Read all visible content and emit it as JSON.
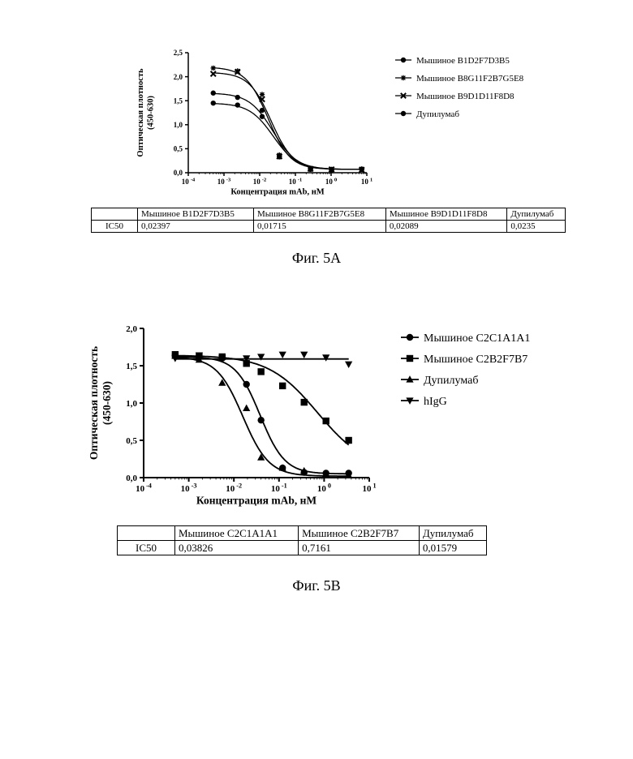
{
  "chart_data": [
    {
      "id": "5A",
      "type": "scatter",
      "title": "",
      "xlabel": "Концентрация mAb, нМ",
      "ylabel": "Оптическая плотность (450-630)",
      "xscale": "log",
      "xlim": [
        0.0001,
        10
      ],
      "ylim": [
        0,
        2.5
      ],
      "x_tick_labels": [
        {
          "base": "10",
          "exp": "-4"
        },
        {
          "base": "10",
          "exp": "-3"
        },
        {
          "base": "10",
          "exp": "-2"
        },
        {
          "base": "10",
          "exp": "-1"
        },
        {
          "base": "10",
          "exp": "0"
        },
        {
          "base": "10",
          "exp": "1"
        }
      ],
      "y_ticks": [
        0,
        0.5,
        1,
        1.5,
        2,
        2.5
      ],
      "y_tick_labels": [
        "0,0",
        "0,5",
        "1,0",
        "1,5",
        "2,0",
        "2,5"
      ],
      "legend_position": "right",
      "grid": false,
      "series": [
        {
          "name": "Мышиное B1D2F7D3B5",
          "marker": "circle",
          "top": 1.45,
          "bottom": 0.07,
          "ic50": 0.02397,
          "hill": 1.3,
          "x": [
            0.0005,
            0.0024,
            0.0117,
            0.0356,
            0.265,
            1.03,
            7.2
          ],
          "y": [
            1.45,
            1.41,
            1.17,
            0.33,
            0.07,
            0.06,
            0.07
          ]
        },
        {
          "name": "Мышиное B8G11F2B7G5E8",
          "marker": "star",
          "top": 2.2,
          "bottom": 0.07,
          "ic50": 0.01715,
          "hill": 1.4,
          "x": [
            0.0005,
            0.0024,
            0.0117,
            0.0356,
            0.265,
            1.03,
            7.2
          ],
          "y": [
            2.18,
            2.12,
            1.63,
            0.37,
            0.08,
            0.06,
            0.08
          ]
        },
        {
          "name": "Мышиное B9D1D11F8D8",
          "marker": "x",
          "top": 2.09,
          "bottom": 0.07,
          "ic50": 0.02089,
          "hill": 1.4,
          "x": [
            0.0005,
            0.0024,
            0.0117,
            0.0356,
            0.265,
            1.03,
            7.2
          ],
          "y": [
            2.06,
            2.1,
            1.53,
            0.34,
            0.08,
            0.07,
            0.06
          ]
        },
        {
          "name": "Дупилумаб",
          "marker": "circle",
          "top": 1.66,
          "bottom": 0.07,
          "ic50": 0.0235,
          "hill": 1.3,
          "x": [
            0.0005,
            0.0024,
            0.0117,
            0.0356,
            0.265,
            1.03,
            7.2
          ],
          "y": [
            1.66,
            1.57,
            1.3,
            0.35,
            0.09,
            0.07,
            0.07
          ]
        }
      ]
    },
    {
      "id": "5B",
      "type": "scatter",
      "title": "",
      "xlabel": "Концентрация mAb, нМ",
      "ylabel": "Оптическая плотность (450-630)",
      "xscale": "log",
      "xlim": [
        0.0001,
        10
      ],
      "ylim": [
        0,
        2
      ],
      "x_tick_labels": [
        {
          "base": "10",
          "exp": "-4"
        },
        {
          "base": "10",
          "exp": "-3"
        },
        {
          "base": "10",
          "exp": "-2"
        },
        {
          "base": "10",
          "exp": "-1"
        },
        {
          "base": "10",
          "exp": "0"
        },
        {
          "base": "10",
          "exp": "1"
        }
      ],
      "y_ticks": [
        0,
        0.5,
        1,
        1.5,
        2
      ],
      "y_tick_labels": [
        "0,0",
        "0,5",
        "1,0",
        "1,5",
        "2,0"
      ],
      "legend_position": "right",
      "grid": false,
      "series": [
        {
          "name": "Мышиное C2C1A1A1",
          "marker": "circle",
          "top": 1.62,
          "bottom": 0.05,
          "ic50": 0.03826,
          "hill": 1.6,
          "x": [
            0.0005,
            0.0017,
            0.0055,
            0.019,
            0.04,
            0.12,
            0.36,
            1.1,
            3.5
          ],
          "y": [
            1.65,
            1.63,
            1.6,
            1.25,
            0.77,
            0.13,
            0.07,
            0.06,
            0.06
          ]
        },
        {
          "name": "Мышиное C2B2F7B7",
          "marker": "square",
          "top": 1.64,
          "bottom": 0.1,
          "ic50": 0.7161,
          "hill": 0.8,
          "x": [
            0.0005,
            0.0017,
            0.0055,
            0.019,
            0.04,
            0.12,
            0.36,
            1.1,
            3.5
          ],
          "y": [
            1.65,
            1.63,
            1.62,
            1.53,
            1.42,
            1.23,
            1.01,
            0.76,
            0.5
          ]
        },
        {
          "name": "Дупилумаб",
          "marker": "triangle-up",
          "top": 1.62,
          "bottom": 0.02,
          "ic50": 0.01579,
          "hill": 1.5,
          "x": [
            0.0005,
            0.0017,
            0.0055,
            0.019,
            0.04,
            0.12,
            0.36,
            1.1,
            3.5
          ],
          "y": [
            1.63,
            1.58,
            1.27,
            0.93,
            0.27,
            0.13,
            0.09,
            0.05,
            0.03
          ]
        },
        {
          "name": "hIgG",
          "marker": "triangle-down",
          "constant": 1.59,
          "x": [
            0.0005,
            0.0017,
            0.0055,
            0.019,
            0.04,
            0.12,
            0.36,
            1.1,
            3.5
          ],
          "y": [
            1.6,
            1.64,
            1.6,
            1.6,
            1.62,
            1.65,
            1.65,
            1.61,
            1.52
          ]
        }
      ]
    }
  ],
  "panel_a": {
    "table": {
      "headers": [
        "",
        "Мышиное B1D2F7D3B5",
        "Мышиное B8G11F2B7G5E8",
        "Мышиное B9D1D11F8D8",
        "Дупилумаб"
      ],
      "row_label": "IC50",
      "values": [
        "0,02397",
        "0,01715",
        "0,02089",
        "0,0235"
      ]
    },
    "caption": "Фиг. 5A"
  },
  "panel_b": {
    "table": {
      "headers": [
        "",
        "Мышиное C2C1A1A1",
        "Мышиное C2B2F7B7",
        "Дупилумаб"
      ],
      "row_label": "IC50",
      "values": [
        "0,03826",
        "0,7161",
        "0,01579"
      ]
    },
    "caption": "Фиг. 5B"
  }
}
